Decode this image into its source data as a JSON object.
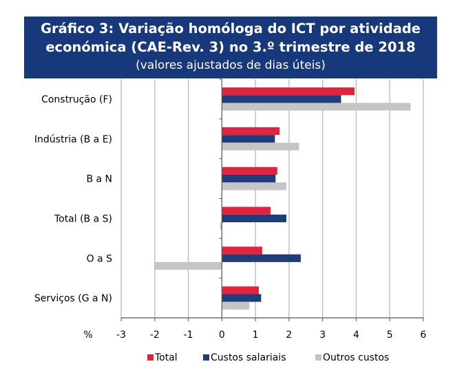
{
  "header": {
    "title_line1": "Gráfico 3: Variação homóloga do ICT por atividade",
    "title_line2": "económica (CAE-Rev. 3) no 3.º trimestre de 2018",
    "subtitle": "(valores ajustados de dias úteis)"
  },
  "chart_data": {
    "type": "bar",
    "orientation": "horizontal",
    "title": "Gráfico 3: Variação homóloga do ICT por atividade económica (CAE-Rev. 3) no 3.º trimestre de 2018",
    "subtitle": "(valores ajustados de dias úteis)",
    "categories": [
      "Construção (F)",
      "Indústria (B a E)",
      "B a N",
      "Total (B a S)",
      "O a S",
      "Serviços (G a N)"
    ],
    "series": [
      {
        "name": "Total",
        "color": "#e3223b",
        "values": [
          3.95,
          1.72,
          1.65,
          1.45,
          1.2,
          1.1
        ]
      },
      {
        "name": "Custos salariais",
        "color": "#1f3d7a",
        "values": [
          3.55,
          1.58,
          1.6,
          1.92,
          2.35,
          1.17
        ]
      },
      {
        "name": "Outros custos",
        "color": "#c5c5c5",
        "values": [
          5.62,
          2.3,
          1.92,
          -0.05,
          -2.02,
          0.82
        ]
      }
    ],
    "xlim": [
      -3,
      6
    ],
    "xticks": [
      "-3",
      "-2",
      "-1",
      "0",
      "1",
      "2",
      "3",
      "4",
      "5",
      "6"
    ],
    "xlabel": "%",
    "grid": "vertical",
    "legend_position": "bottom"
  }
}
